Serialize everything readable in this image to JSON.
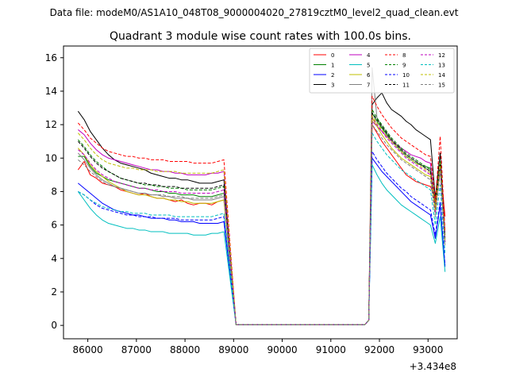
{
  "figure": {
    "suptitle": "Data file: modeM0/AS1A10_048T08_9000004020_27819cztM0_level2_quad_clean.evt"
  },
  "chart_data": {
    "type": "line",
    "title": "Quadrant 3 module wise count rates with 100.0s bins.",
    "xlabel": "",
    "ylabel": "",
    "x_offset_label": "+3.434e8",
    "x_offset": 343400000,
    "xlim": [
      85500,
      93600
    ],
    "ylim": [
      -0.8,
      16.7
    ],
    "xticks": [
      86000,
      87000,
      88000,
      89000,
      90000,
      91000,
      92000,
      93000
    ],
    "xtick_labels": [
      "86000",
      "87000",
      "88000",
      "89000",
      "90000",
      "91000",
      "92000",
      "93000"
    ],
    "yticks": [
      0,
      2,
      4,
      6,
      8,
      10,
      12,
      14,
      16
    ],
    "ytick_labels": [
      "0",
      "2",
      "4",
      "6",
      "8",
      "10",
      "12",
      "14",
      "16"
    ],
    "grid": false,
    "legend_position": "top-right",
    "series": [
      {
        "name": "0",
        "color": "#ff0000",
        "style": "solid",
        "level1": [
          9.3,
          9.8,
          9.0,
          8.8,
          8.5,
          8.4,
          8.3,
          8.1,
          8.0,
          7.9,
          7.8,
          7.9,
          7.7,
          7.6,
          7.6,
          7.5,
          7.4,
          7.5,
          7.3,
          7.2,
          7.3,
          7.3,
          7.2,
          7.4,
          7.5
        ],
        "level2": [
          12.0,
          11.5,
          11.0,
          10.6,
          10.2,
          9.8,
          9.4,
          9.0,
          8.8,
          8.6,
          8.5,
          8.4,
          8.3,
          7.6,
          9.5,
          6.5
        ]
      },
      {
        "name": "1",
        "color": "#008000",
        "style": "solid",
        "level1": [
          10.1,
          10.1,
          9.5,
          9.1,
          8.9,
          8.7,
          8.6,
          8.5,
          8.4,
          8.3,
          8.2,
          8.2,
          8.1,
          8.0,
          8.0,
          7.9,
          7.9,
          7.8,
          7.8,
          7.8,
          7.7,
          7.7,
          7.7,
          7.8,
          7.9
        ],
        "level2": [
          12.7,
          12.2,
          11.8,
          11.4,
          11.0,
          10.7,
          10.4,
          10.1,
          9.9,
          9.7,
          9.6,
          9.5,
          9.4,
          7.3,
          9.7,
          5.2
        ]
      },
      {
        "name": "2",
        "color": "#0000ff",
        "style": "solid",
        "level1": [
          8.5,
          8.2,
          7.9,
          7.6,
          7.3,
          7.1,
          6.9,
          6.8,
          6.7,
          6.6,
          6.6,
          6.5,
          6.4,
          6.4,
          6.4,
          6.3,
          6.3,
          6.2,
          6.2,
          6.2,
          6.1,
          6.1,
          6.1,
          6.1,
          6.2
        ],
        "level2": [
          10.0,
          9.6,
          9.2,
          8.9,
          8.6,
          8.3,
          8.0,
          7.7,
          7.4,
          7.2,
          7.0,
          6.8,
          6.6,
          5.2,
          7.2,
          3.5
        ]
      },
      {
        "name": "3",
        "color": "#000000",
        "style": "solid",
        "level1": [
          12.8,
          12.3,
          11.6,
          11.1,
          10.6,
          10.2,
          9.9,
          9.7,
          9.6,
          9.5,
          9.4,
          9.3,
          9.1,
          9.0,
          8.9,
          8.8,
          8.8,
          8.7,
          8.7,
          8.6,
          8.5,
          8.5,
          8.5,
          8.6,
          8.7
        ],
        "level2": [
          13.2,
          13.6,
          13.9,
          13.3,
          12.9,
          12.7,
          12.5,
          12.2,
          12.0,
          11.7,
          11.5,
          11.3,
          11.1,
          7.6,
          10.3,
          5.4
        ]
      },
      {
        "name": "4",
        "color": "#bf00bf",
        "style": "solid",
        "level1": [
          11.7,
          11.4,
          10.9,
          10.5,
          10.2,
          10.0,
          9.9,
          9.8,
          9.7,
          9.6,
          9.5,
          9.4,
          9.3,
          9.3,
          9.2,
          9.2,
          9.1,
          9.1,
          9.0,
          9.0,
          9.0,
          9.0,
          9.1,
          9.1,
          9.2
        ],
        "level2": [
          12.2,
          11.9,
          11.6,
          11.3,
          11.0,
          10.8,
          10.6,
          10.4,
          10.2,
          10.1,
          10.0,
          9.8,
          9.7,
          6.9,
          9.3,
          5.0
        ]
      },
      {
        "name": "5",
        "color": "#00bfbf",
        "style": "solid",
        "level1": [
          8.0,
          7.5,
          7.0,
          6.6,
          6.3,
          6.1,
          6.0,
          5.9,
          5.8,
          5.8,
          5.7,
          5.7,
          5.6,
          5.6,
          5.6,
          5.5,
          5.5,
          5.5,
          5.5,
          5.4,
          5.4,
          5.4,
          5.5,
          5.5,
          5.6
        ],
        "level2": [
          9.6,
          9.0,
          8.5,
          8.1,
          7.8,
          7.5,
          7.2,
          7.0,
          6.8,
          6.6,
          6.4,
          6.2,
          6.0,
          4.9,
          6.5,
          3.2
        ]
      },
      {
        "name": "6",
        "color": "#bfbf00",
        "style": "solid",
        "level1": [
          10.6,
          10.2,
          9.6,
          9.2,
          8.9,
          8.6,
          8.4,
          8.2,
          8.0,
          7.9,
          7.8,
          7.8,
          7.7,
          7.6,
          7.6,
          7.5,
          7.5,
          7.4,
          7.4,
          7.3,
          7.3,
          7.3,
          7.3,
          7.4,
          7.5
        ],
        "level2": [
          12.4,
          11.9,
          11.4,
          11.0,
          10.6,
          10.3,
          10.0,
          9.8,
          9.6,
          9.4,
          9.2,
          9.0,
          8.9,
          7.0,
          9.4,
          5.1
        ]
      },
      {
        "name": "7",
        "color": "#808080",
        "style": "solid",
        "level1": [
          10.3,
          9.9,
          9.4,
          9.0,
          8.7,
          8.5,
          8.3,
          8.2,
          8.1,
          8.0,
          7.9,
          7.9,
          7.8,
          7.8,
          7.7,
          7.7,
          7.6,
          7.6,
          7.6,
          7.5,
          7.5,
          7.5,
          7.5,
          7.6,
          7.7
        ],
        "level2": [
          15.4,
          12.4,
          11.9,
          11.5,
          11.1,
          10.8,
          10.5,
          10.2,
          10.0,
          9.8,
          9.6,
          9.4,
          9.2,
          7.1,
          9.5,
          5.2
        ]
      },
      {
        "name": "8",
        "color": "#ff0000",
        "style": "dashed",
        "level1": [
          12.1,
          11.7,
          11.2,
          10.9,
          10.6,
          10.4,
          10.3,
          10.2,
          10.1,
          10.1,
          10.0,
          10.0,
          9.9,
          9.9,
          9.9,
          9.8,
          9.8,
          9.8,
          9.8,
          9.7,
          9.7,
          9.7,
          9.7,
          9.8,
          9.9
        ],
        "level2": [
          13.7,
          13.1,
          12.6,
          12.2,
          11.8,
          11.5,
          11.2,
          11.0,
          10.8,
          10.6,
          10.4,
          10.2,
          10.1,
          7.4,
          11.3,
          5.6
        ]
      },
      {
        "name": "9",
        "color": "#008000",
        "style": "dashed",
        "level1": [
          11.1,
          10.7,
          10.2,
          9.8,
          9.5,
          9.2,
          9.0,
          8.8,
          8.7,
          8.6,
          8.5,
          8.4,
          8.4,
          8.3,
          8.3,
          8.2,
          8.2,
          8.2,
          8.1,
          8.1,
          8.1,
          8.1,
          8.1,
          8.2,
          8.3
        ],
        "level2": [
          12.9,
          12.4,
          12.0,
          11.6,
          11.2,
          10.9,
          10.6,
          10.3,
          10.1,
          9.9,
          9.7,
          9.5,
          9.3,
          6.8,
          9.8,
          5.0
        ]
      },
      {
        "name": "10",
        "color": "#0000ff",
        "style": "dashed",
        "level1": [
          8.0,
          7.8,
          7.5,
          7.2,
          7.0,
          6.9,
          6.8,
          6.7,
          6.6,
          6.6,
          6.5,
          6.5,
          6.5,
          6.4,
          6.4,
          6.4,
          6.4,
          6.3,
          6.3,
          6.3,
          6.3,
          6.3,
          6.3,
          6.4,
          6.5
        ],
        "level2": [
          10.4,
          9.9,
          9.5,
          9.1,
          8.8,
          8.5,
          8.2,
          8.0,
          7.7,
          7.5,
          7.3,
          7.1,
          6.9,
          5.4,
          7.4,
          3.6
        ]
      },
      {
        "name": "11",
        "color": "#000000",
        "style": "dashed",
        "level1": [
          11.0,
          10.6,
          10.1,
          9.7,
          9.4,
          9.2,
          9.0,
          8.8,
          8.7,
          8.6,
          8.5,
          8.5,
          8.4,
          8.4,
          8.3,
          8.3,
          8.3,
          8.2,
          8.2,
          8.2,
          8.2,
          8.2,
          8.2,
          8.3,
          8.4
        ],
        "level2": [
          12.7,
          12.3,
          11.9,
          11.5,
          11.1,
          10.8,
          10.5,
          10.2,
          10.0,
          9.8,
          9.6,
          9.4,
          9.2,
          6.8,
          9.7,
          5.0
        ]
      },
      {
        "name": "12",
        "color": "#bf00bf",
        "style": "dashed",
        "level1": [
          10.5,
          10.2,
          9.7,
          9.3,
          9.0,
          8.8,
          8.6,
          8.5,
          8.4,
          8.3,
          8.2,
          8.2,
          8.1,
          8.1,
          8.0,
          8.0,
          8.0,
          7.9,
          7.9,
          7.9,
          7.9,
          7.9,
          7.9,
          8.0,
          8.1
        ],
        "level2": [
          12.5,
          12.0,
          11.6,
          11.2,
          10.9,
          10.6,
          10.3,
          10.0,
          9.8,
          9.6,
          9.4,
          9.2,
          9.0,
          6.7,
          9.5,
          4.9
        ]
      },
      {
        "name": "13",
        "color": "#00bfbf",
        "style": "dashed",
        "level1": [
          8.0,
          7.8,
          7.5,
          7.3,
          7.1,
          7.0,
          6.9,
          6.8,
          6.8,
          6.7,
          6.7,
          6.7,
          6.6,
          6.6,
          6.6,
          6.6,
          6.5,
          6.5,
          6.5,
          6.5,
          6.5,
          6.5,
          6.5,
          6.6,
          6.7
        ],
        "level2": [
          11.5,
          11.0,
          10.6,
          10.2,
          9.9,
          9.6,
          9.3,
          9.1,
          8.9,
          8.7,
          8.5,
          8.3,
          8.1,
          6.0,
          8.4,
          4.3
        ]
      },
      {
        "name": "14",
        "color": "#bfbf00",
        "style": "dashed",
        "level1": [
          11.5,
          11.1,
          10.6,
          10.2,
          9.9,
          9.7,
          9.6,
          9.5,
          9.4,
          9.4,
          9.3,
          9.3,
          9.3,
          9.2,
          9.2,
          9.2,
          9.2,
          9.1,
          9.1,
          9.1,
          9.1,
          9.1,
          9.1,
          9.2,
          9.3
        ],
        "level2": [
          12.5,
          12.1,
          11.7,
          11.3,
          11.0,
          10.7,
          10.4,
          10.1,
          9.9,
          9.7,
          9.5,
          9.3,
          9.1,
          6.9,
          9.7,
          5.0
        ]
      },
      {
        "name": "15",
        "color": "#808080",
        "style": "dashed",
        "level1": [
          9.9,
          9.6,
          9.2,
          8.9,
          8.6,
          8.4,
          8.3,
          8.2,
          8.1,
          8.0,
          7.9,
          7.9,
          7.8,
          7.8,
          7.8,
          7.7,
          7.7,
          7.7,
          7.6,
          7.6,
          7.6,
          7.6,
          7.6,
          7.7,
          7.8
        ],
        "level2": [
          12.0,
          11.6,
          11.2,
          10.8,
          10.5,
          10.2,
          9.9,
          9.7,
          9.5,
          9.3,
          9.1,
          8.9,
          8.7,
          6.5,
          9.2,
          4.7
        ]
      }
    ],
    "segments": {
      "seg1_start": 85800,
      "seg1_step": 125,
      "gap_start": 89050,
      "gap_end": 91700,
      "gap_value": 0.05,
      "seg2_start": 91850,
      "seg2_step": 100
    }
  }
}
